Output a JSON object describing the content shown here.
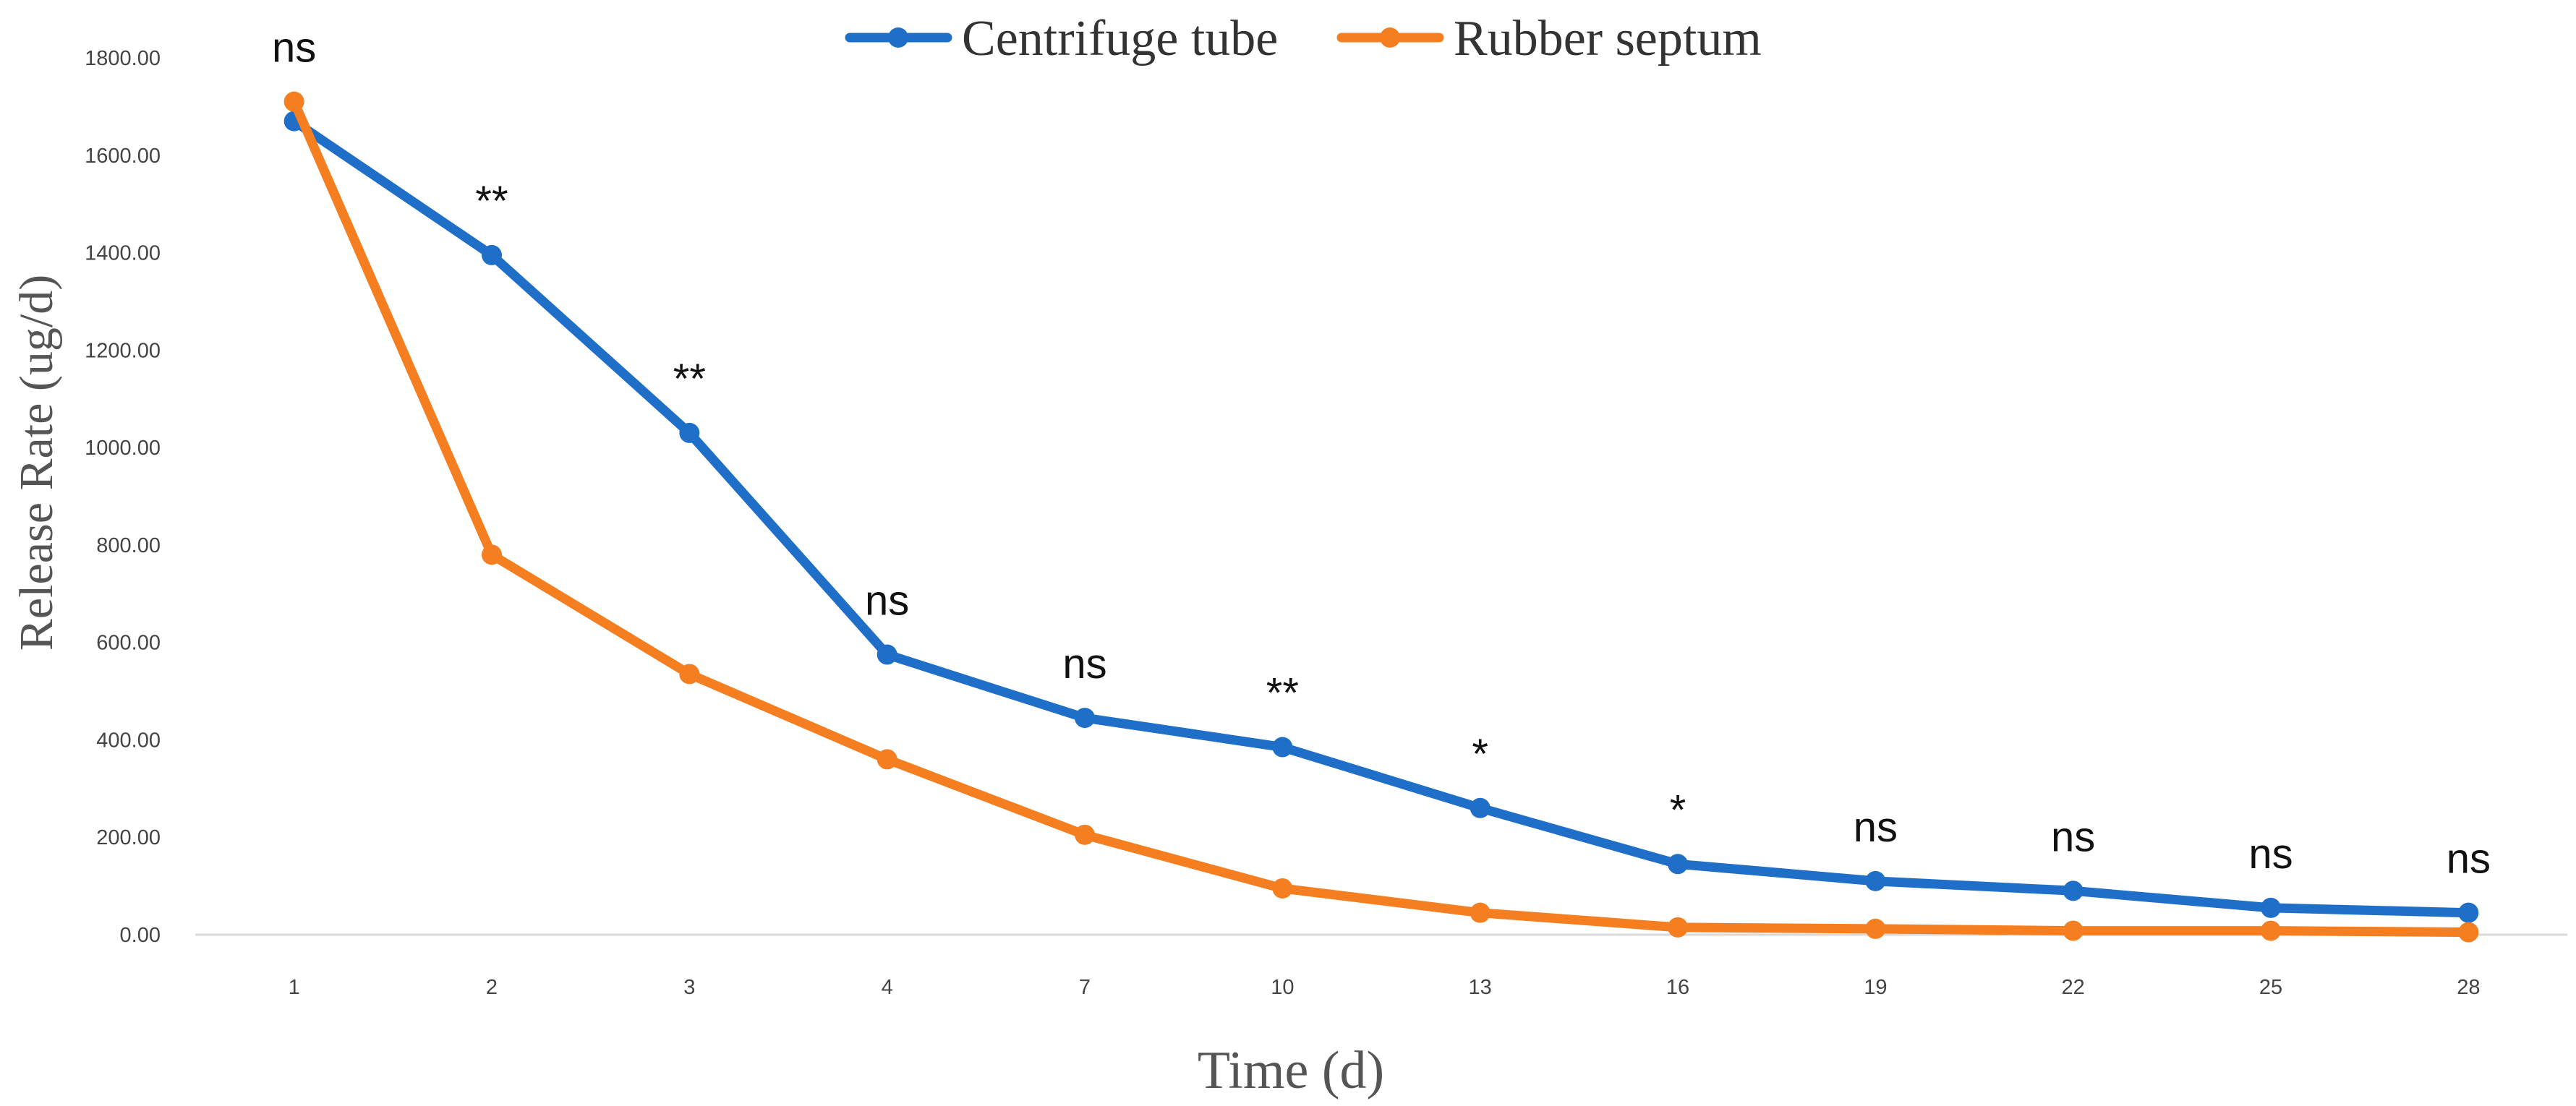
{
  "chart_data": {
    "type": "line",
    "title": "",
    "xlabel": "Time (d)",
    "ylabel": "Release Rate (ug/d)",
    "categories": [
      "1",
      "2",
      "3",
      "4",
      "7",
      "10",
      "13",
      "16",
      "19",
      "22",
      "25",
      "28"
    ],
    "ylim": [
      0,
      1800
    ],
    "yticks": [
      0,
      200,
      400,
      600,
      800,
      1000,
      1200,
      1400,
      1600,
      1800
    ],
    "ytick_labels": [
      "0.00",
      "200.00",
      "400.00",
      "600.00",
      "800.00",
      "1000.00",
      "1200.00",
      "1400.00",
      "1600.00",
      "1800.00"
    ],
    "grid": false,
    "legend_position": "top-center",
    "series": [
      {
        "name": "Centrifuge tube",
        "color": "#1F6FC8",
        "values": [
          1670,
          1395,
          1030,
          575,
          445,
          385,
          260,
          145,
          110,
          90,
          55,
          45
        ]
      },
      {
        "name": "Rubber septum",
        "color": "#F47E20",
        "values": [
          1710,
          780,
          535,
          360,
          205,
          95,
          45,
          15,
          12,
          8,
          8,
          5
        ]
      }
    ],
    "annotations": [
      "ns",
      "**",
      "**",
      "ns",
      "ns",
      "**",
      "*",
      "*",
      "ns",
      "ns",
      "ns",
      "ns"
    ]
  }
}
